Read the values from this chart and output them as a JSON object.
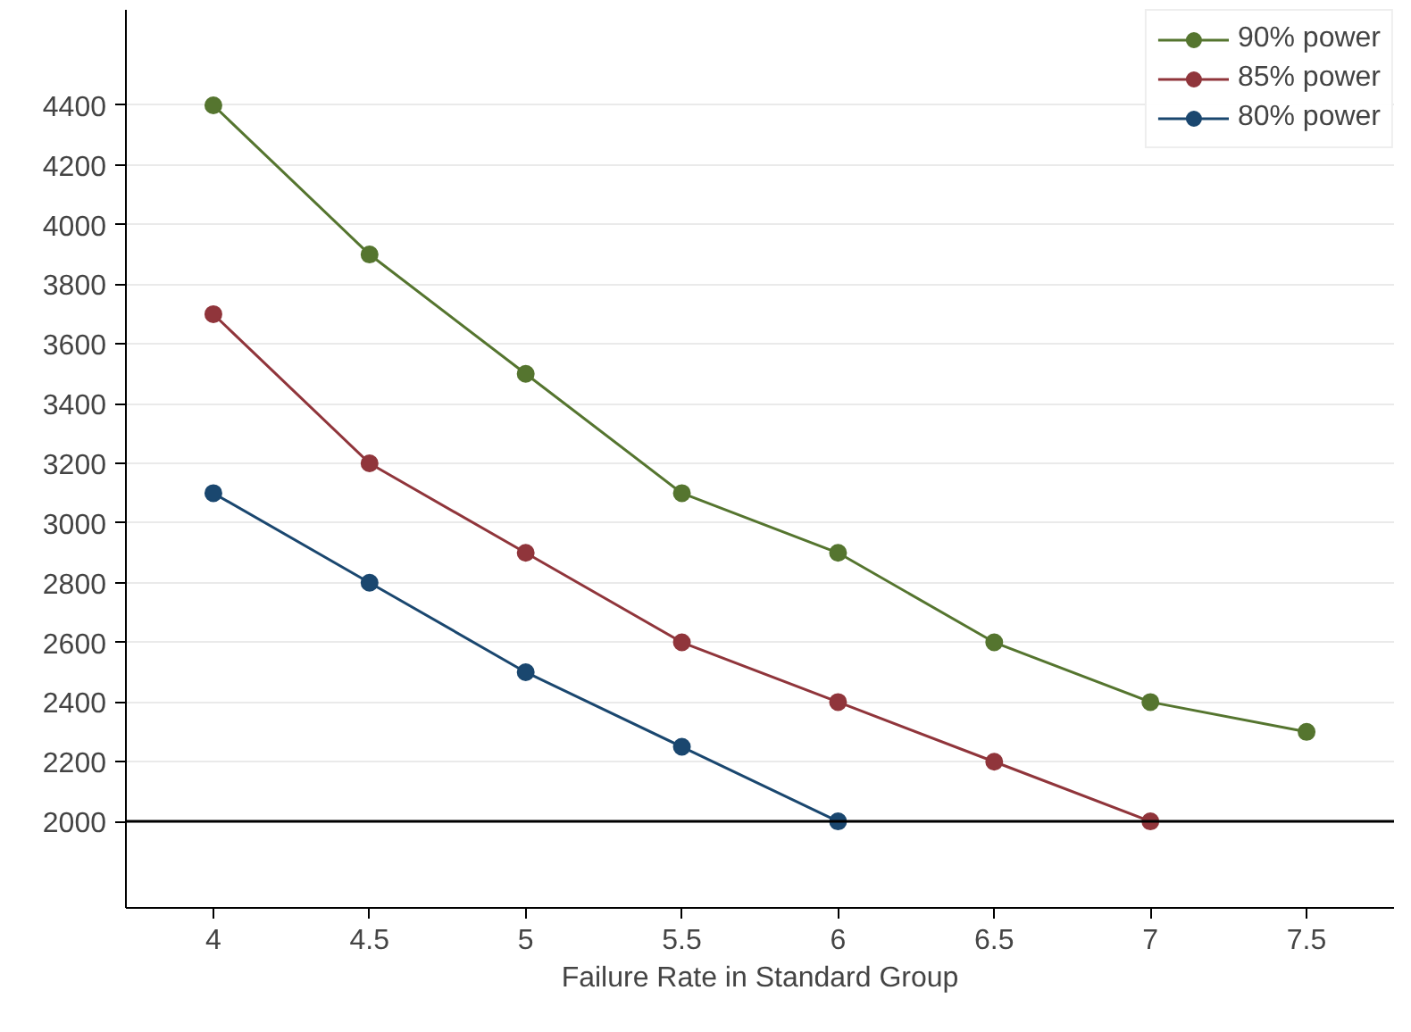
{
  "chart_data": {
    "type": "line",
    "xlabel": "Failure Rate in Standard Group",
    "xlim": [
      3.72,
      7.78
    ],
    "xticks": [
      4,
      {
        "value": 4.5,
        "label": "4.5"
      },
      5,
      {
        "value": 5.5,
        "label": "5.5"
      },
      6,
      {
        "value": 6.5,
        "label": "6.5"
      },
      7,
      {
        "value": 7.5,
        "label": "7.5"
      }
    ],
    "ylim": [
      1710,
      4720
    ],
    "yticks": [
      2000,
      2200,
      2400,
      2600,
      2800,
      3000,
      3200,
      3400,
      3600,
      3800,
      4000,
      4200,
      4400
    ],
    "grid": "y",
    "legend": "top right",
    "marker": "circle",
    "line_style": "solid",
    "ref_lines": [
      {
        "axis": "y",
        "value": 2000,
        "color": "#000000"
      }
    ],
    "series": [
      {
        "name": "90% power",
        "color": "#55752f",
        "x": [
          4,
          4.5,
          5,
          5.5,
          6,
          6.5,
          7,
          7.5
        ],
        "values": [
          4400,
          3900,
          3500,
          3100,
          2900,
          2600,
          2400,
          2300
        ]
      },
      {
        "name": "85% power",
        "color": "#90353b",
        "x": [
          4,
          4.5,
          5,
          5.5,
          6,
          6.5,
          7
        ],
        "values": [
          3700,
          3200,
          2900,
          2600,
          2400,
          2200,
          2000
        ]
      },
      {
        "name": "80% power",
        "color": "#1a476f",
        "x": [
          4,
          4.5,
          5,
          5.5,
          6
        ],
        "values": [
          3100,
          2800,
          2500,
          2250,
          2000
        ]
      }
    ]
  }
}
